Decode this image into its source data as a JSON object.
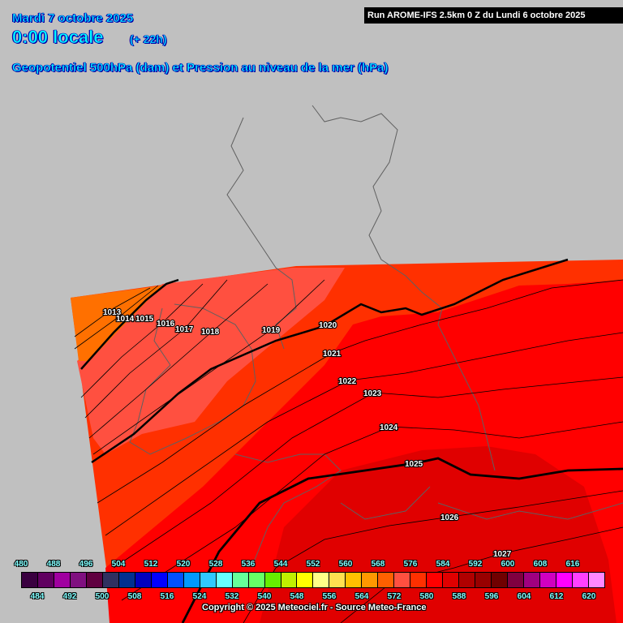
{
  "header": {
    "date": "Mardi 7 octobre 2025",
    "time": "0:00 locale",
    "lead": "(+ 22h)",
    "title": "Geopotentiel 500hPa (dam) et Pression au niveau de la mer (hPa)",
    "run": "Run AROME-IFS 2.5km 0 Z du Lundi 6 octobre 2025"
  },
  "isobars": [
    "1013",
    "1014",
    "1015",
    "1016",
    "1017",
    "1018",
    "1019",
    "1020",
    "1021",
    "1022",
    "1023",
    "1024",
    "1025",
    "1026",
    "1027"
  ],
  "field_colors": {
    "orange": "#ff7000",
    "light_red": "#ff5040",
    "orange_red": "#ff3000",
    "red": "#ff0000",
    "dark_red": "#e00000",
    "background": "#c0c0c0"
  },
  "legend": {
    "top_labels": [
      "480",
      "488",
      "496",
      "504",
      "512",
      "520",
      "528",
      "536",
      "544",
      "552",
      "560",
      "568",
      "576",
      "584",
      "592",
      "600",
      "608",
      "616"
    ],
    "bottom_labels": [
      "484",
      "492",
      "500",
      "508",
      "516",
      "524",
      "532",
      "540",
      "548",
      "556",
      "564",
      "572",
      "580",
      "588",
      "596",
      "604",
      "612",
      "620"
    ],
    "colors": [
      "#3a0040",
      "#600060",
      "#a000a0",
      "#801080",
      "#600040",
      "#303060",
      "#003090",
      "#0000c0",
      "#0000ff",
      "#0050ff",
      "#0098ff",
      "#30c8ff",
      "#66ffff",
      "#66ff99",
      "#66ff66",
      "#66ee00",
      "#c0f000",
      "#ffff00",
      "#ffff88",
      "#ffe050",
      "#ffc000",
      "#ff9800",
      "#ff6000",
      "#ff5040",
      "#ff3000",
      "#ff0000",
      "#e00000",
      "#b00000",
      "#980000",
      "#700000",
      "#800040",
      "#a00080",
      "#d000c0",
      "#ff00ff",
      "#ff40ff",
      "#ff88ff"
    ]
  },
  "copyright": "Copyright © 2025 Meteociel.fr - Source Meteo-France"
}
